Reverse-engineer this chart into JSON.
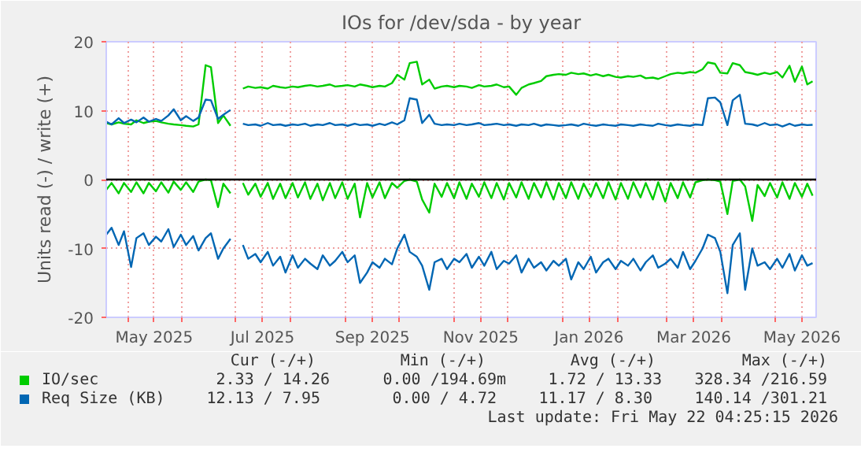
{
  "chart_data": {
    "type": "line",
    "title": "IOs for /dev/sda - by year",
    "ylabel": "Units read (-) / write (+)",
    "x": [
      "2025-04-19",
      "2025-04-22",
      "2025-04-26",
      "2025-04-29",
      "2025-05-03",
      "2025-05-06",
      "2025-05-10",
      "2025-05-13",
      "2025-05-17",
      "2025-05-20",
      "2025-05-24",
      "2025-05-27",
      "2025-05-31",
      "2025-06-03",
      "2025-06-07",
      "2025-06-10",
      "2025-06-14",
      "2025-06-17",
      "2025-06-21",
      "2025-06-24",
      "2025-06-28",
      "2025-07-01",
      "2025-07-05",
      "2025-07-08",
      "2025-07-12",
      "2025-07-15",
      "2025-07-19",
      "2025-07-22",
      "2025-07-26",
      "2025-07-29",
      "2025-08-02",
      "2025-08-05",
      "2025-08-09",
      "2025-08-12",
      "2025-08-16",
      "2025-08-19",
      "2025-08-23",
      "2025-08-26",
      "2025-08-30",
      "2025-09-02",
      "2025-09-06",
      "2025-09-09",
      "2025-09-13",
      "2025-09-16",
      "2025-09-20",
      "2025-09-23",
      "2025-09-27",
      "2025-09-30",
      "2025-10-04",
      "2025-10-07",
      "2025-10-11",
      "2025-10-14",
      "2025-10-18",
      "2025-10-21",
      "2025-10-25",
      "2025-10-28",
      "2025-11-01",
      "2025-11-04",
      "2025-11-08",
      "2025-11-11",
      "2025-11-15",
      "2025-11-18",
      "2025-11-22",
      "2025-11-25",
      "2025-11-29",
      "2025-12-02",
      "2025-12-06",
      "2025-12-09",
      "2025-12-13",
      "2025-12-16",
      "2025-12-20",
      "2025-12-23",
      "2025-12-27",
      "2025-12-30",
      "2026-01-03",
      "2026-01-06",
      "2026-01-10",
      "2026-01-13",
      "2026-01-17",
      "2026-01-20",
      "2026-01-24",
      "2026-01-27",
      "2026-01-31",
      "2026-02-03",
      "2026-02-07",
      "2026-02-10",
      "2026-02-14",
      "2026-02-17",
      "2026-02-21",
      "2026-02-24",
      "2026-02-28",
      "2026-03-03",
      "2026-03-07",
      "2026-03-10",
      "2026-03-14",
      "2026-03-17",
      "2026-03-21",
      "2026-03-24",
      "2026-03-28",
      "2026-03-31",
      "2026-04-04",
      "2026-04-07",
      "2026-04-11",
      "2026-04-14",
      "2026-04-18",
      "2026-04-21",
      "2026-04-25",
      "2026-04-28",
      "2026-05-02",
      "2026-05-05",
      "2026-05-09",
      "2026-05-12",
      "2026-05-16",
      "2026-05-19",
      "2026-05-22"
    ],
    "series": [
      {
        "name": "IO/sec",
        "color": "#00cc00",
        "values": [
          8.2,
          8.0,
          8.3,
          8.1,
          8.0,
          8.6,
          8.2,
          8.4,
          8.5,
          8.3,
          8.1,
          8.0,
          7.9,
          7.8,
          7.7,
          8.0,
          16.6,
          16.3,
          8.2,
          9.3,
          7.8,
          null,
          13.2,
          13.5,
          13.3,
          13.4,
          13.2,
          13.6,
          13.4,
          13.3,
          13.5,
          13.4,
          13.6,
          13.7,
          13.5,
          13.6,
          13.8,
          13.5,
          13.6,
          13.7,
          13.5,
          13.8,
          13.6,
          13.4,
          13.6,
          13.5,
          14.0,
          15.2,
          14.5,
          16.9,
          17.1,
          13.8,
          14.5,
          13.2,
          13.5,
          13.6,
          13.4,
          13.6,
          13.5,
          13.3,
          13.7,
          13.5,
          13.6,
          13.8,
          13.4,
          13.5,
          12.3,
          13.3,
          13.8,
          14.0,
          14.3,
          15.0,
          15.2,
          15.3,
          15.2,
          15.5,
          15.3,
          15.4,
          15.1,
          15.3,
          15.0,
          15.2,
          14.9,
          14.8,
          15.0,
          14.9,
          15.1,
          14.7,
          14.8,
          14.6,
          15.0,
          15.3,
          15.5,
          15.4,
          15.6,
          15.5,
          16.0,
          17.0,
          16.8,
          15.5,
          15.4,
          16.9,
          16.6,
          15.6,
          15.4,
          15.2,
          15.5,
          15.3,
          15.6,
          14.8,
          16.5,
          14.2,
          16.4,
          13.8,
          14.26
        ]
      },
      {
        "name": "Req Size (KB)",
        "color": "#0066b3",
        "values": [
          8.4,
          8.0,
          8.9,
          8.2,
          8.7,
          8.3,
          9.0,
          8.4,
          8.8,
          8.5,
          9.3,
          10.2,
          8.6,
          9.2,
          8.5,
          9.0,
          11.6,
          11.5,
          8.8,
          9.4,
          10.1,
          null,
          8.1,
          7.9,
          8.0,
          7.8,
          8.2,
          7.9,
          8.0,
          7.8,
          8.0,
          7.9,
          8.1,
          7.8,
          8.0,
          7.9,
          8.2,
          7.9,
          8.0,
          7.8,
          8.1,
          7.9,
          8.0,
          7.8,
          8.1,
          7.9,
          8.3,
          8.0,
          8.6,
          11.8,
          11.6,
          8.2,
          9.4,
          8.1,
          7.9,
          8.0,
          7.9,
          8.1,
          7.9,
          8.0,
          8.2,
          7.9,
          8.0,
          8.1,
          7.9,
          8.0,
          7.8,
          8.0,
          7.9,
          8.1,
          7.8,
          8.0,
          7.9,
          7.8,
          7.9,
          8.0,
          7.8,
          8.1,
          7.9,
          7.8,
          8.0,
          7.9,
          7.8,
          8.0,
          7.9,
          7.8,
          8.0,
          7.9,
          7.8,
          8.1,
          7.9,
          7.8,
          8.0,
          7.9,
          7.8,
          8.0,
          7.9,
          11.8,
          11.9,
          11.2,
          7.9,
          11.5,
          12.3,
          8.1,
          8.0,
          7.8,
          8.2,
          7.9,
          8.0,
          7.7,
          8.1,
          7.8,
          8.0,
          7.9,
          7.95
        ]
      },
      {
        "color": "#00cc00",
        "values": [
          -1.5,
          -0.5,
          -2.0,
          -0.5,
          -1.8,
          -0.4,
          -2.0,
          -0.5,
          -1.7,
          -0.4,
          -1.9,
          -0.3,
          -1.5,
          -0.4,
          -1.8,
          -0.3,
          0.0,
          -0.1,
          -4.0,
          -0.6,
          -2.0,
          null,
          -0.5,
          -2.2,
          -0.6,
          -2.5,
          -0.5,
          -2.8,
          -0.6,
          -2.7,
          -0.5,
          -2.6,
          -0.4,
          -2.8,
          -0.6,
          -3.0,
          -0.5,
          -2.7,
          -0.4,
          -2.8,
          -0.6,
          -5.5,
          -0.5,
          -2.6,
          -0.4,
          -2.7,
          -0.5,
          -1.2,
          -0.2,
          0.0,
          -0.3,
          -2.9,
          -4.8,
          -0.6,
          -2.5,
          -0.5,
          -2.7,
          -0.4,
          -2.8,
          -0.6,
          -2.5,
          -0.4,
          -2.7,
          -0.5,
          -2.9,
          -0.5,
          -2.6,
          -0.4,
          -2.8,
          -0.5,
          -2.6,
          -0.4,
          -2.9,
          -0.5,
          -2.7,
          -0.4,
          -2.8,
          -0.6,
          -2.5,
          -0.5,
          -2.7,
          -0.4,
          -2.9,
          -0.5,
          -2.8,
          -0.4,
          -2.6,
          -0.5,
          -2.9,
          -0.4,
          -3.2,
          -0.5,
          -2.7,
          -0.4,
          -2.6,
          -0.4,
          -0.1,
          0.0,
          -0.1,
          -0.3,
          -5.0,
          -0.2,
          0.0,
          -1.0,
          -6.0,
          -0.8,
          -2.4,
          -0.5,
          -2.6,
          -0.4,
          -2.8,
          -0.5,
          -2.5,
          -0.6,
          -2.33
        ]
      },
      {
        "color": "#0066b3",
        "values": [
          -8.0,
          -7.0,
          -9.5,
          -7.5,
          -12.7,
          -8.5,
          -7.8,
          -9.5,
          -8.3,
          -9.0,
          -7.2,
          -9.8,
          -8.0,
          -9.5,
          -8.2,
          -10.3,
          -8.5,
          -7.8,
          -11.5,
          -10.0,
          -8.6,
          null,
          -9.5,
          -11.5,
          -10.8,
          -12.0,
          -10.5,
          -12.5,
          -11.2,
          -13.5,
          -11.0,
          -12.8,
          -11.5,
          -12.2,
          -13.0,
          -11.0,
          -12.5,
          -11.8,
          -10.5,
          -12.0,
          -11.0,
          -15.0,
          -13.5,
          -12.0,
          -12.8,
          -11.5,
          -12.3,
          -10.0,
          -8.0,
          -10.5,
          -11.2,
          -12.5,
          -16.0,
          -12.0,
          -11.5,
          -13.0,
          -11.5,
          -12.0,
          -10.8,
          -12.8,
          -11.2,
          -12.5,
          -10.5,
          -13.0,
          -11.8,
          -12.2,
          -11.0,
          -13.5,
          -11.5,
          -12.8,
          -12.0,
          -13.2,
          -11.8,
          -12.5,
          -11.5,
          -14.5,
          -12.0,
          -13.0,
          -11.2,
          -13.5,
          -12.0,
          -11.5,
          -13.0,
          -11.8,
          -12.5,
          -11.5,
          -13.2,
          -12.0,
          -11.0,
          -12.8,
          -12.2,
          -11.5,
          -12.8,
          -10.5,
          -13.0,
          -11.8,
          -10.0,
          -8.0,
          -8.5,
          -10.5,
          -16.5,
          -9.5,
          -7.8,
          -16.0,
          -10.0,
          -12.5,
          -12.0,
          -13.0,
          -11.5,
          -12.8,
          -10.8,
          -13.2,
          -11.0,
          -12.5,
          -12.13
        ]
      }
    ],
    "xlim": [
      "2025-04-19",
      "2026-05-24"
    ],
    "xticks": [
      {
        "value": "2025-05-01",
        "label": null
      },
      {
        "value": "2025-05-16",
        "label": "May 2025"
      },
      {
        "value": "2025-06-01",
        "label": null
      },
      {
        "value": "2025-07-01",
        "label": null
      },
      {
        "value": "2025-07-16",
        "label": "Jul 2025"
      },
      {
        "value": "2025-08-01",
        "label": null
      },
      {
        "value": "2025-09-01",
        "label": null
      },
      {
        "value": "2025-09-16",
        "label": "Sep 2025"
      },
      {
        "value": "2025-10-01",
        "label": null
      },
      {
        "value": "2025-11-01",
        "label": null
      },
      {
        "value": "2025-11-16",
        "label": "Nov 2025"
      },
      {
        "value": "2025-12-01",
        "label": null
      },
      {
        "value": "2026-01-01",
        "label": null
      },
      {
        "value": "2026-01-16",
        "label": "Jan 2026"
      },
      {
        "value": "2026-02-01",
        "label": null
      },
      {
        "value": "2026-03-01",
        "label": null
      },
      {
        "value": "2026-03-16",
        "label": "Mar 2026"
      },
      {
        "value": "2026-04-01",
        "label": null
      },
      {
        "value": "2026-05-01",
        "label": null
      },
      {
        "value": "2026-05-16",
        "label": "May 2026"
      }
    ],
    "ylim": [
      -20,
      20
    ],
    "yticks": [
      -20,
      -10,
      0,
      10,
      20
    ],
    "ref_lines": [
      {
        "axis": "y",
        "value": 0,
        "color": "#000000"
      }
    ],
    "grid": true,
    "legend": "bottom",
    "annotations": [
      "Cur (-/+)",
      "Min (-/+)",
      "Avg (-/+)",
      "Max (-/+)",
      "2.33 / 14.26",
      "0.00 /194.69m",
      "1.72 / 13.33",
      "328.34 /216.59",
      "12.13 /  7.95",
      "0.00 /  4.72",
      "11.17 /  8.30",
      "140.14 /301.21",
      "Last update: Fri May 22 04:25:15 2026"
    ]
  }
}
